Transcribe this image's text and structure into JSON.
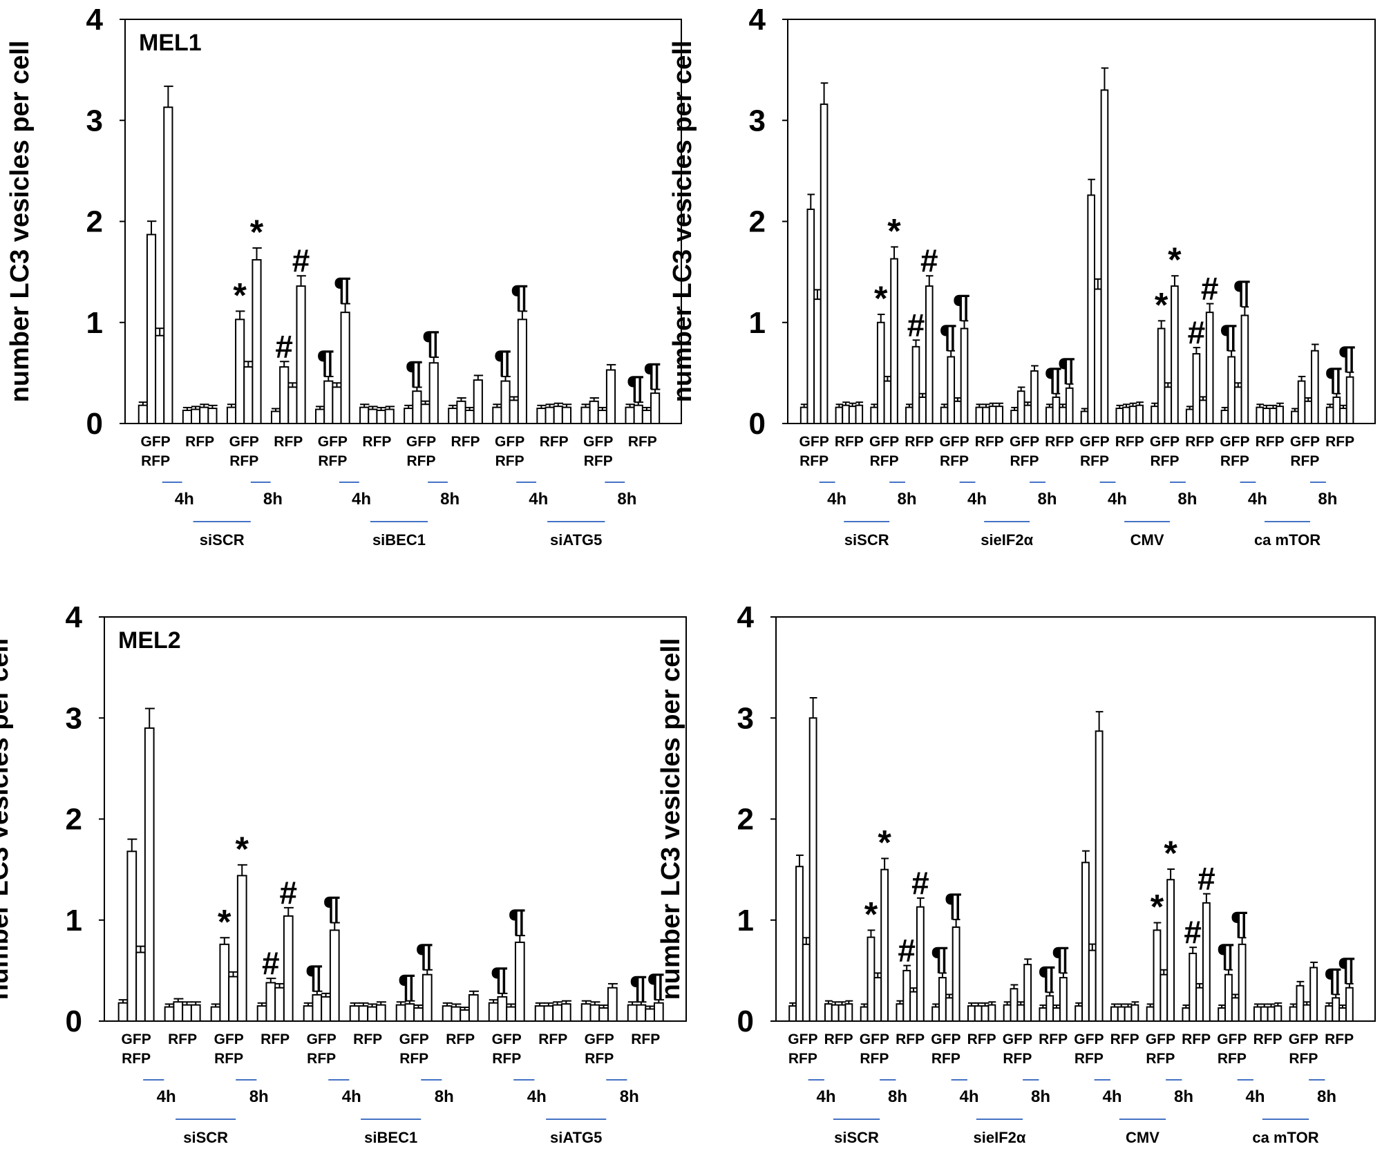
{
  "colors": {
    "bar_fill": "#ffffff",
    "bar_stroke": "#000000",
    "accent_line": "#4472c4"
  },
  "chart_data": [
    {
      "type": "bar",
      "title": "MEL1",
      "ylabel": "number LC3 vesicles per cell",
      "ylim": [
        0,
        4
      ],
      "yticks": [
        0,
        1,
        2,
        3,
        4
      ],
      "categories": [
        [
          "GFP",
          "RFP"
        ],
        [
          "RFP"
        ],
        [
          "GFP",
          "RFP"
        ],
        [
          "RFP"
        ],
        [
          "GFP",
          "RFP"
        ],
        [
          "RFP"
        ],
        [
          "GFP",
          "RFP"
        ],
        [
          "RFP"
        ],
        [
          "GFP",
          "RFP"
        ],
        [
          "RFP"
        ],
        [
          "GFP",
          "RFP"
        ],
        [
          "RFP"
        ]
      ],
      "values": [
        [
          0.18,
          1.87,
          0.87,
          3.13
        ],
        [
          0.13,
          0.14,
          0.16,
          0.15
        ],
        [
          0.16,
          1.03,
          0.56,
          1.62
        ],
        [
          0.12,
          0.56,
          0.36,
          1.36
        ],
        [
          0.14,
          0.42,
          0.36,
          1.1
        ],
        [
          0.16,
          0.14,
          0.13,
          0.14
        ],
        [
          0.15,
          0.32,
          0.19,
          0.6
        ],
        [
          0.15,
          0.22,
          0.13,
          0.43
        ],
        [
          0.16,
          0.42,
          0.23,
          1.03
        ],
        [
          0.15,
          0.16,
          0.17,
          0.16
        ],
        [
          0.16,
          0.22,
          0.13,
          0.53
        ],
        [
          0.16,
          0.18,
          0.13,
          0.3
        ]
      ],
      "time_labels": [
        "4h",
        "8h",
        "4h",
        "8h",
        "4h",
        "8h"
      ],
      "treatments": [
        "siSCR",
        "siBEC1",
        "siATG5"
      ],
      "annotations": [
        {
          "group": 2,
          "bars": [
            1,
            3
          ],
          "symbol": "*"
        },
        {
          "group": 3,
          "bars": [
            1,
            3
          ],
          "symbol": "#"
        },
        {
          "group": 4,
          "bars": [
            1,
            3
          ],
          "symbol": "¶"
        },
        {
          "group": 6,
          "bars": [
            1,
            3
          ],
          "symbol": "¶"
        },
        {
          "group": 8,
          "bars": [
            1,
            3
          ],
          "symbol": "¶"
        },
        {
          "group": 11,
          "bars": [
            1,
            3
          ],
          "symbol": "¶"
        }
      ]
    },
    {
      "type": "bar",
      "title": "",
      "ylabel": "number LC3 vesicles per cell",
      "ylim": [
        0,
        4
      ],
      "yticks": [
        0,
        1,
        2,
        3,
        4
      ],
      "categories": [
        [
          "GFP",
          "RFP"
        ],
        [
          "RFP"
        ],
        [
          "GFP",
          "RFP"
        ],
        [
          "RFP"
        ],
        [
          "GFP",
          "RFP"
        ],
        [
          "RFP"
        ],
        [
          "GFP",
          "RFP"
        ],
        [
          "RFP"
        ],
        [
          "GFP",
          "RFP"
        ],
        [
          "RFP"
        ],
        [
          "GFP",
          "RFP"
        ],
        [
          "RFP"
        ],
        [
          "GFP",
          "RFP"
        ],
        [
          "RFP"
        ],
        [
          "GFP",
          "RFP"
        ],
        [
          "RFP"
        ]
      ],
      "values": [
        [
          0.16,
          2.12,
          1.23,
          3.16
        ],
        [
          0.16,
          0.18,
          0.17,
          0.18
        ],
        [
          0.16,
          1.0,
          0.42,
          1.63
        ],
        [
          0.16,
          0.76,
          0.26,
          1.36
        ],
        [
          0.16,
          0.66,
          0.22,
          0.94
        ],
        [
          0.16,
          0.16,
          0.17,
          0.17
        ],
        [
          0.13,
          0.32,
          0.18,
          0.52
        ],
        [
          0.16,
          0.26,
          0.16,
          0.35
        ],
        [
          0.12,
          2.26,
          1.33,
          3.3
        ],
        [
          0.15,
          0.16,
          0.17,
          0.18
        ],
        [
          0.17,
          0.94,
          0.36,
          1.36
        ],
        [
          0.14,
          0.69,
          0.23,
          1.1
        ],
        [
          0.13,
          0.66,
          0.36,
          1.07
        ],
        [
          0.16,
          0.15,
          0.15,
          0.17
        ],
        [
          0.12,
          0.42,
          0.22,
          0.72
        ],
        [
          0.16,
          0.26,
          0.15,
          0.46
        ]
      ],
      "time_labels": [
        "4h",
        "8h",
        "4h",
        "8h",
        "4h",
        "8h",
        "4h",
        "8h"
      ],
      "treatments": [
        "siSCR",
        "sieIF2α",
        "CMV",
        "ca mTOR"
      ],
      "annotations": [
        {
          "group": 2,
          "bars": [
            1,
            3
          ],
          "symbol": "*"
        },
        {
          "group": 3,
          "bars": [
            1,
            3
          ],
          "symbol": "#"
        },
        {
          "group": 4,
          "bars": [
            1,
            3
          ],
          "symbol": "¶"
        },
        {
          "group": 7,
          "bars": [
            1,
            3
          ],
          "symbol": "¶"
        },
        {
          "group": 10,
          "bars": [
            1,
            3
          ],
          "symbol": "*"
        },
        {
          "group": 11,
          "bars": [
            1,
            3
          ],
          "symbol": "#"
        },
        {
          "group": 12,
          "bars": [
            1,
            3
          ],
          "symbol": "¶"
        },
        {
          "group": 15,
          "bars": [
            1,
            3
          ],
          "symbol": "¶"
        }
      ]
    },
    {
      "type": "bar",
      "title": "MEL2",
      "ylabel": "number LC3 vesicles per cell",
      "ylim": [
        0,
        4
      ],
      "yticks": [
        0,
        1,
        2,
        3,
        4
      ],
      "categories": [
        [
          "GFP",
          "RFP"
        ],
        [
          "RFP"
        ],
        [
          "GFP",
          "RFP"
        ],
        [
          "RFP"
        ],
        [
          "GFP",
          "RFP"
        ],
        [
          "RFP"
        ],
        [
          "GFP",
          "RFP"
        ],
        [
          "RFP"
        ],
        [
          "GFP",
          "RFP"
        ],
        [
          "RFP"
        ],
        [
          "GFP",
          "RFP"
        ],
        [
          "RFP"
        ]
      ],
      "values": [
        [
          0.18,
          1.68,
          0.68,
          2.9
        ],
        [
          0.14,
          0.19,
          0.16,
          0.16
        ],
        [
          0.14,
          0.76,
          0.44,
          1.44
        ],
        [
          0.15,
          0.38,
          0.33,
          1.04
        ],
        [
          0.15,
          0.26,
          0.24,
          0.9
        ],
        [
          0.15,
          0.15,
          0.14,
          0.16
        ],
        [
          0.16,
          0.17,
          0.13,
          0.46
        ],
        [
          0.15,
          0.14,
          0.11,
          0.26
        ],
        [
          0.18,
          0.24,
          0.14,
          0.78
        ],
        [
          0.15,
          0.15,
          0.16,
          0.17
        ],
        [
          0.17,
          0.16,
          0.13,
          0.33
        ],
        [
          0.16,
          0.16,
          0.12,
          0.18
        ]
      ],
      "time_labels": [
        "4h",
        "8h",
        "4h",
        "8h",
        "4h",
        "8h"
      ],
      "treatments": [
        "siSCR",
        "siBEC1",
        "siATG5"
      ],
      "annotations": [
        {
          "group": 2,
          "bars": [
            1,
            3
          ],
          "symbol": "*"
        },
        {
          "group": 3,
          "bars": [
            1,
            3
          ],
          "symbol": "#"
        },
        {
          "group": 4,
          "bars": [
            1,
            3
          ],
          "symbol": "¶"
        },
        {
          "group": 6,
          "bars": [
            1,
            3
          ],
          "symbol": "¶"
        },
        {
          "group": 8,
          "bars": [
            1,
            3
          ],
          "symbol": "¶"
        },
        {
          "group": 11,
          "bars": [
            1,
            3
          ],
          "symbol": "¶"
        }
      ]
    },
    {
      "type": "bar",
      "title": "",
      "ylabel": "number LC3 vesicles per cell",
      "ylim": [
        0,
        4
      ],
      "yticks": [
        0,
        1,
        2,
        3,
        4
      ],
      "categories": [
        [
          "GFP",
          "RFP"
        ],
        [
          "RFP"
        ],
        [
          "GFP",
          "RFP"
        ],
        [
          "RFP"
        ],
        [
          "GFP",
          "RFP"
        ],
        [
          "RFP"
        ],
        [
          "GFP",
          "RFP"
        ],
        [
          "RFP"
        ],
        [
          "GFP",
          "RFP"
        ],
        [
          "RFP"
        ],
        [
          "GFP",
          "RFP"
        ],
        [
          "RFP"
        ],
        [
          "GFP",
          "RFP"
        ],
        [
          "RFP"
        ],
        [
          "GFP",
          "RFP"
        ],
        [
          "RFP"
        ]
      ],
      "values": [
        [
          0.15,
          1.53,
          0.76,
          3.0
        ],
        [
          0.17,
          0.16,
          0.16,
          0.17
        ],
        [
          0.14,
          0.83,
          0.43,
          1.5
        ],
        [
          0.17,
          0.5,
          0.29,
          1.13
        ],
        [
          0.14,
          0.43,
          0.23,
          0.93
        ],
        [
          0.15,
          0.15,
          0.15,
          0.16
        ],
        [
          0.16,
          0.32,
          0.16,
          0.56
        ],
        [
          0.13,
          0.25,
          0.13,
          0.43
        ],
        [
          0.15,
          1.57,
          0.7,
          2.87
        ],
        [
          0.14,
          0.14,
          0.14,
          0.16
        ],
        [
          0.14,
          0.9,
          0.46,
          1.4
        ],
        [
          0.13,
          0.67,
          0.33,
          1.17
        ],
        [
          0.13,
          0.46,
          0.23,
          0.76
        ],
        [
          0.14,
          0.14,
          0.14,
          0.15
        ],
        [
          0.14,
          0.35,
          0.16,
          0.53
        ],
        [
          0.15,
          0.23,
          0.13,
          0.33
        ]
      ],
      "time_labels": [
        "4h",
        "8h",
        "4h",
        "8h",
        "4h",
        "8h",
        "4h",
        "8h"
      ],
      "treatments": [
        "siSCR",
        "sieIF2α",
        "CMV",
        "ca mTOR"
      ],
      "annotations": [
        {
          "group": 2,
          "bars": [
            1,
            3
          ],
          "symbol": "*"
        },
        {
          "group": 3,
          "bars": [
            1,
            3
          ],
          "symbol": "#"
        },
        {
          "group": 4,
          "bars": [
            1,
            3
          ],
          "symbol": "¶"
        },
        {
          "group": 7,
          "bars": [
            1,
            3
          ],
          "symbol": "¶"
        },
        {
          "group": 10,
          "bars": [
            1,
            3
          ],
          "symbol": "*"
        },
        {
          "group": 11,
          "bars": [
            1,
            3
          ],
          "symbol": "#"
        },
        {
          "group": 12,
          "bars": [
            1,
            3
          ],
          "symbol": "¶"
        },
        {
          "group": 15,
          "bars": [
            1,
            3
          ],
          "symbol": "¶"
        }
      ]
    }
  ]
}
